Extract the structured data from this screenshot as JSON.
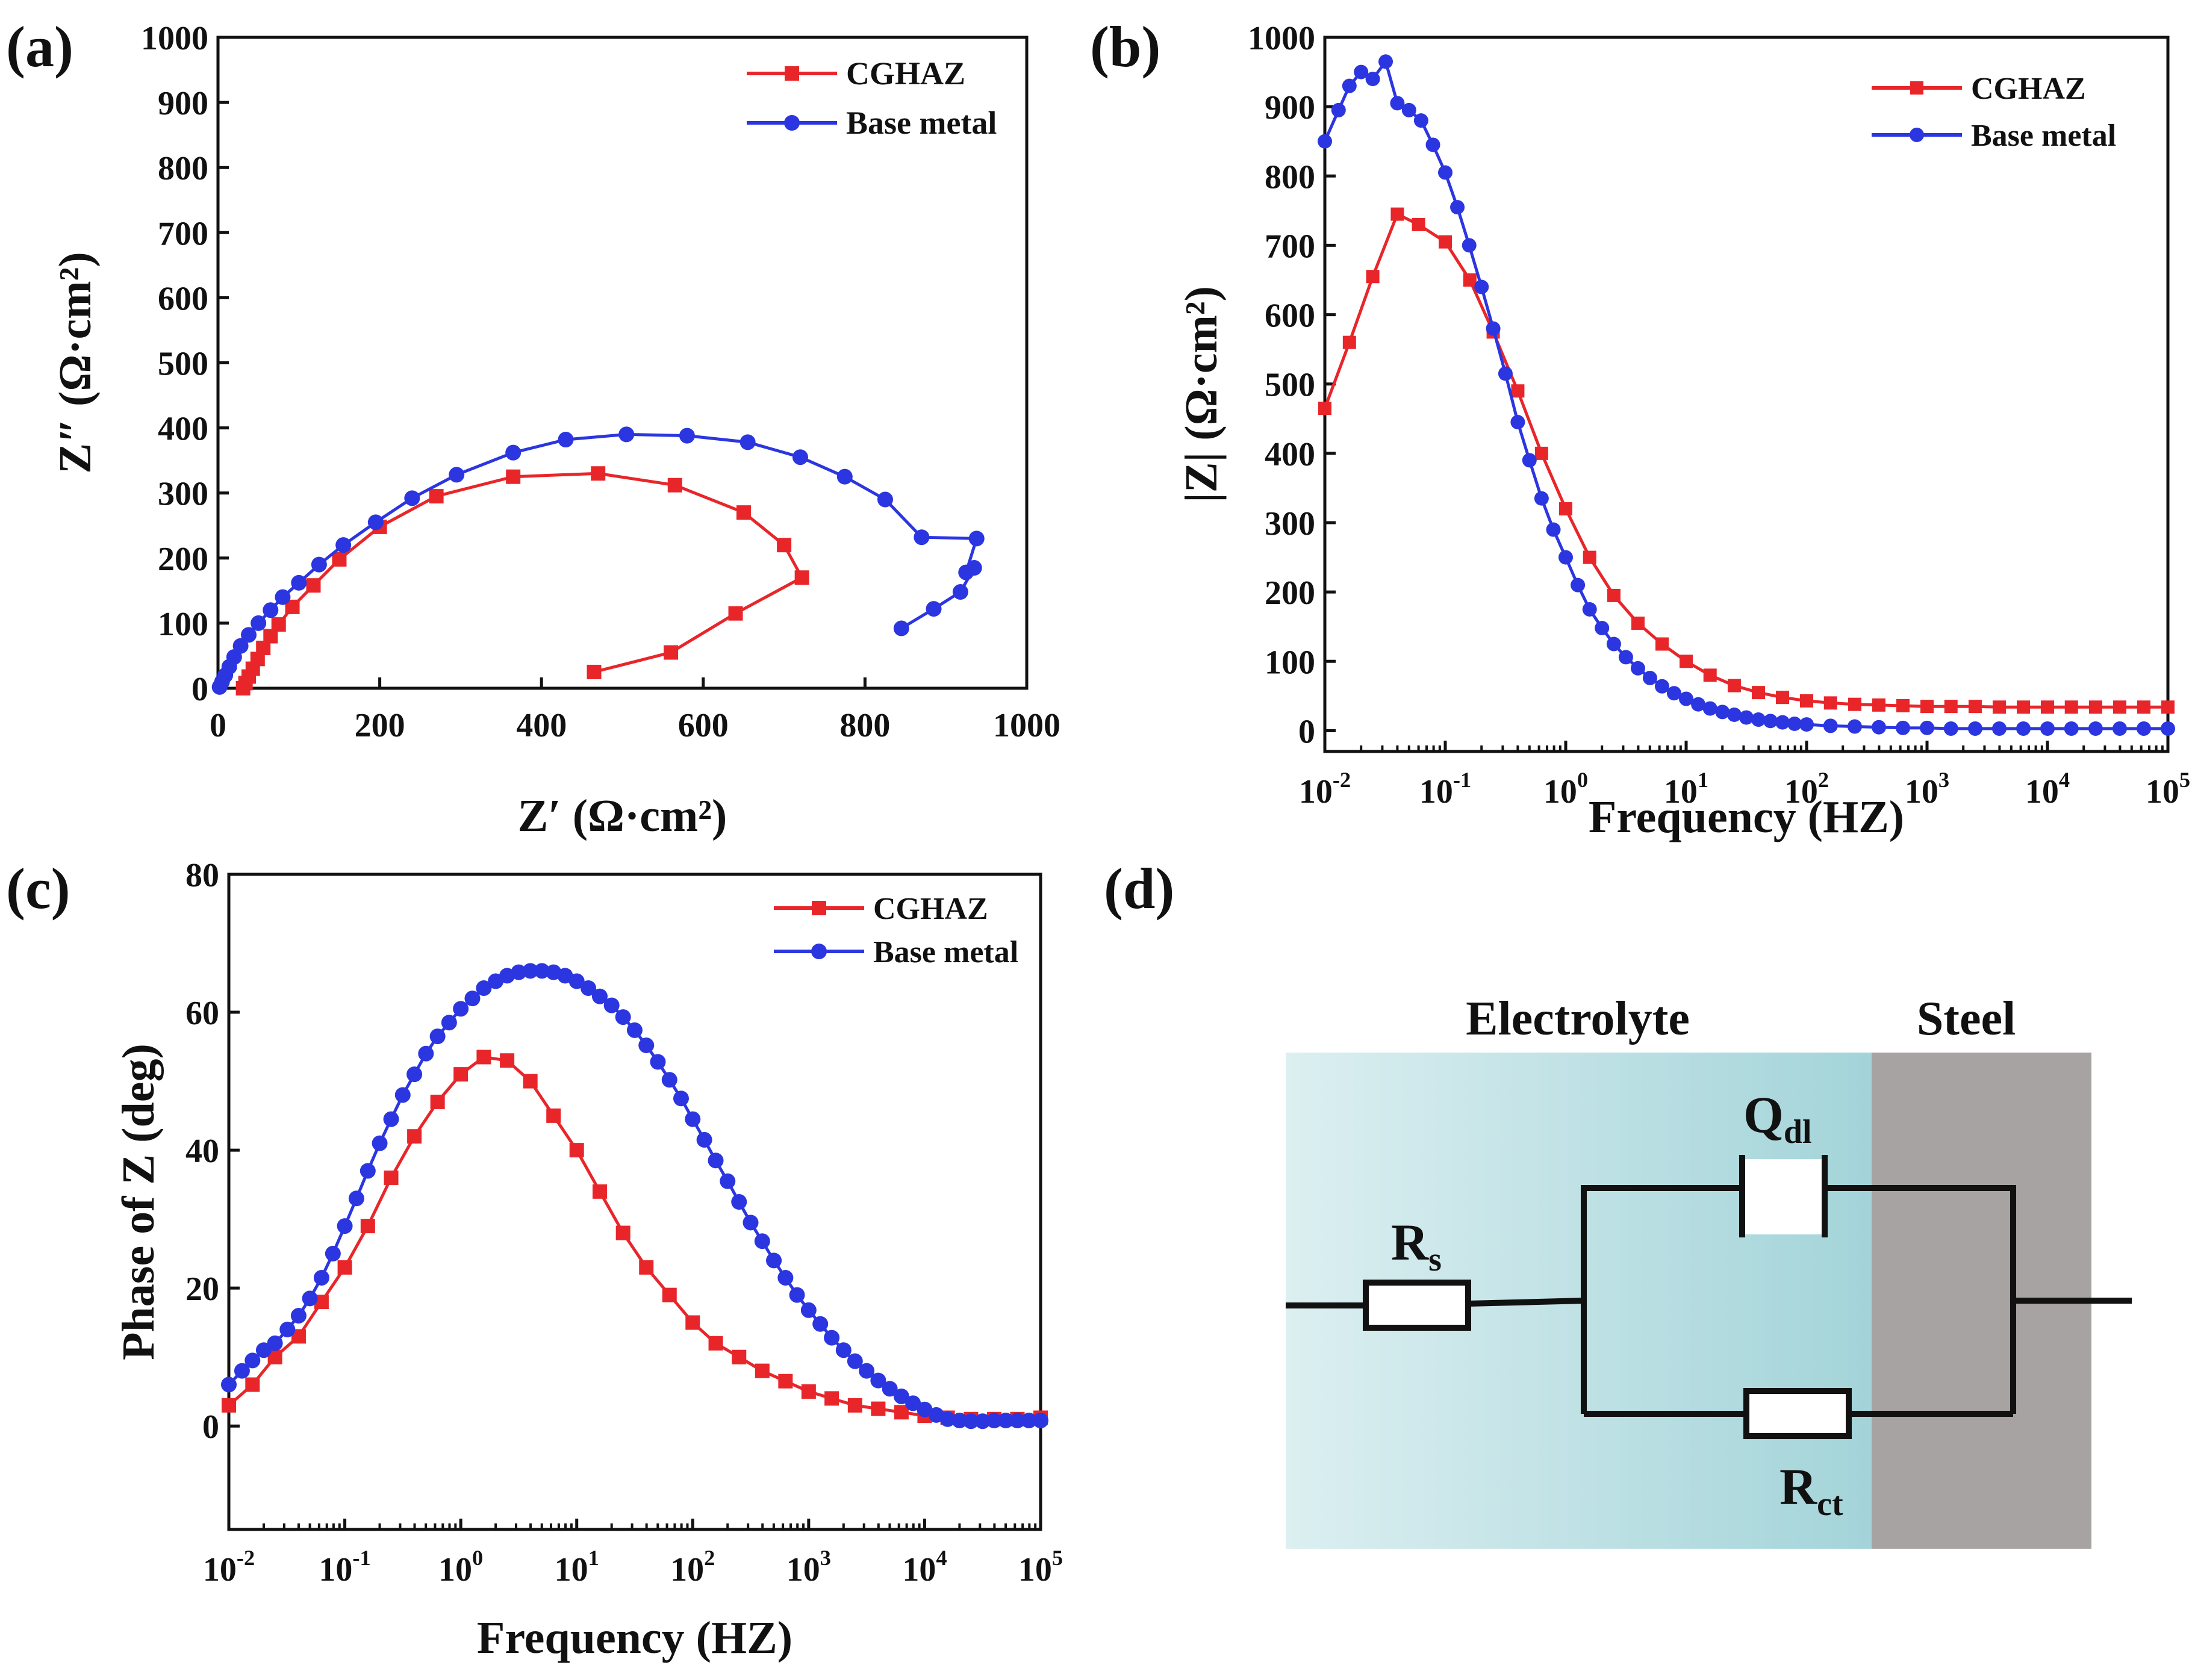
{
  "figure": {
    "panel_labels": [
      "(a)",
      "(b)",
      "(c)",
      "(d)"
    ]
  },
  "colors": {
    "cghaz": "#e8262a",
    "base": "#2b36e0",
    "axis": "#111111"
  },
  "circuit": {
    "electrolyte_label": "Electrolyte",
    "steel_label": "Steel",
    "rs": {
      "main": "R",
      "sub": "s"
    },
    "qdl": {
      "main": "Q",
      "sub": "dl"
    },
    "rct": {
      "main": "R",
      "sub": "ct"
    },
    "electrolyte_color": "#a8d8db",
    "steel_color": "#a7a3a3"
  },
  "chart_data": [
    {
      "panel": "(a)",
      "type": "line",
      "title": "",
      "xlabel": "Z′  (Ω·cm²)",
      "ylabel": "Z″ (Ω·cm²)",
      "xlim": [
        0,
        1000
      ],
      "ylim": [
        0,
        1000
      ],
      "xticks": [
        0,
        200,
        400,
        600,
        800,
        1000
      ],
      "yticks": [
        0,
        100,
        200,
        300,
        400,
        500,
        600,
        700,
        800,
        900,
        1000
      ],
      "legend": "top-right",
      "series": [
        {
          "name": "CGHAZ",
          "marker": "square",
          "x": [
            31,
            34,
            38,
            43,
            49,
            56,
            65,
            75,
            92,
            118,
            150,
            200,
            270,
            365,
            470,
            565,
            650,
            700,
            722,
            640,
            560,
            465
          ],
          "y": [
            0,
            8,
            18,
            30,
            45,
            62,
            80,
            98,
            125,
            158,
            198,
            248,
            295,
            325,
            330,
            312,
            270,
            220,
            170,
            115,
            55,
            25
          ]
        },
        {
          "name": "Base metal",
          "marker": "circle",
          "x": [
            2,
            5,
            9,
            14,
            20,
            28,
            38,
            50,
            65,
            80,
            100,
            125,
            155,
            195,
            240,
            295,
            365,
            430,
            505,
            580,
            655,
            720,
            775,
            825,
            870,
            938,
            925,
            935,
            918,
            885,
            845
          ],
          "y": [
            2,
            10,
            20,
            33,
            48,
            65,
            82,
            100,
            120,
            140,
            162,
            190,
            220,
            255,
            292,
            328,
            362,
            382,
            390,
            388,
            378,
            355,
            325,
            290,
            232,
            230,
            178,
            185,
            148,
            122,
            92
          ]
        }
      ]
    },
    {
      "panel": "(b)",
      "type": "line",
      "title": "",
      "xlabel": "Frequency (HZ)",
      "ylabel": "|Z| (Ω·cm²)",
      "xscale": "log",
      "xlim": [
        0.01,
        100000
      ],
      "ylim": [
        -30,
        1000
      ],
      "xticks": [
        0.01,
        0.1,
        1,
        10,
        100,
        1000,
        10000,
        100000
      ],
      "xtick_labels": [
        {
          "base": "10",
          "exp": "-2"
        },
        {
          "base": "10",
          "exp": "-1"
        },
        {
          "base": "10",
          "exp": "0"
        },
        {
          "base": "10",
          "exp": "1"
        },
        {
          "base": "10",
          "exp": "2"
        },
        {
          "base": "10",
          "exp": "3"
        },
        {
          "base": "10",
          "exp": "4"
        },
        {
          "base": "10",
          "exp": "5"
        }
      ],
      "yticks": [
        0,
        100,
        200,
        300,
        400,
        500,
        600,
        700,
        800,
        900,
        1000
      ],
      "legend": "top-right",
      "series": [
        {
          "name": "CGHAZ",
          "marker": "square",
          "x": [
            0.01,
            0.016,
            0.025,
            0.04,
            0.06,
            0.1,
            0.16,
            0.25,
            0.4,
            0.63,
            1,
            1.58,
            2.51,
            3.98,
            6.31,
            10,
            15.8,
            25.1,
            39.8,
            63.1,
            100,
            158,
            251,
            398,
            631,
            1000,
            1580,
            2510,
            3980,
            6310,
            10000,
            15800,
            25100,
            39800,
            63100,
            100000
          ],
          "y": [
            465,
            560,
            655,
            745,
            730,
            705,
            650,
            575,
            490,
            400,
            320,
            250,
            195,
            155,
            125,
            100,
            80,
            65,
            55,
            48,
            43,
            40,
            38,
            37,
            36,
            35,
            35,
            35,
            34,
            34,
            34,
            34,
            34,
            34,
            34,
            34
          ]
        },
        {
          "name": "Base metal",
          "marker": "circle",
          "x": [
            0.01,
            0.013,
            0.016,
            0.02,
            0.025,
            0.032,
            0.04,
            0.05,
            0.063,
            0.079,
            0.1,
            0.126,
            0.158,
            0.2,
            0.25,
            0.316,
            0.4,
            0.5,
            0.63,
            0.79,
            1,
            1.26,
            1.58,
            2,
            2.51,
            3.16,
            3.98,
            5.01,
            6.31,
            7.94,
            10,
            12.6,
            15.8,
            20,
            25.1,
            31.6,
            39.8,
            50.1,
            63.1,
            79.4,
            100,
            158,
            251,
            398,
            631,
            1000,
            1580,
            2510,
            3980,
            6310,
            10000,
            15800,
            25100,
            39800,
            63100,
            100000
          ],
          "y": [
            850,
            895,
            930,
            950,
            940,
            965,
            905,
            895,
            880,
            845,
            805,
            755,
            700,
            640,
            580,
            515,
            445,
            390,
            335,
            290,
            250,
            210,
            175,
            148,
            125,
            106,
            90,
            76,
            64,
            54,
            46,
            38,
            32,
            27,
            23,
            19,
            16,
            14,
            12,
            10,
            9,
            7,
            6,
            5,
            4,
            4,
            3,
            3,
            3,
            3,
            3,
            3,
            3,
            3,
            3,
            3
          ]
        }
      ]
    },
    {
      "panel": "(c)",
      "type": "line",
      "title": "",
      "xlabel": "Frequency (HZ)",
      "ylabel": "Phase of Z (deg)",
      "xscale": "log",
      "xlim": [
        0.01,
        100000
      ],
      "ylim": [
        -15,
        80
      ],
      "xticks": [
        0.01,
        0.1,
        1,
        10,
        100,
        1000,
        10000,
        100000
      ],
      "xtick_labels": [
        {
          "base": "10",
          "exp": "-2"
        },
        {
          "base": "10",
          "exp": "-1"
        },
        {
          "base": "10",
          "exp": "0"
        },
        {
          "base": "10",
          "exp": "1"
        },
        {
          "base": "10",
          "exp": "2"
        },
        {
          "base": "10",
          "exp": "3"
        },
        {
          "base": "10",
          "exp": "4"
        },
        {
          "base": "10",
          "exp": "5"
        }
      ],
      "yticks": [
        0,
        20,
        40,
        60,
        80
      ],
      "legend": "top-right",
      "series": [
        {
          "name": "CGHAZ",
          "marker": "square",
          "x": [
            0.01,
            0.016,
            0.025,
            0.04,
            0.063,
            0.1,
            0.158,
            0.251,
            0.398,
            0.631,
            1,
            1.58,
            2.51,
            3.98,
            6.31,
            10,
            15.8,
            25.1,
            39.8,
            63.1,
            100,
            158,
            251,
            398,
            631,
            1000,
            1580,
            2510,
            3980,
            6310,
            10000,
            15800,
            25100,
            39800,
            63100,
            100000
          ],
          "y": [
            3,
            6,
            10,
            13,
            18,
            23,
            29,
            36,
            42,
            47,
            51,
            53.5,
            53,
            50,
            45,
            40,
            34,
            28,
            23,
            19,
            15,
            12,
            10,
            8,
            6.5,
            5,
            4,
            3,
            2.5,
            2,
            1.5,
            1.2,
            1,
            1,
            1,
            1.2
          ]
        },
        {
          "name": "Base metal",
          "marker": "circle",
          "x": [
            0.01,
            0.013,
            0.016,
            0.02,
            0.025,
            0.032,
            0.04,
            0.05,
            0.063,
            0.079,
            0.1,
            0.126,
            0.158,
            0.2,
            0.251,
            0.316,
            0.398,
            0.501,
            0.631,
            0.794,
            1,
            1.26,
            1.58,
            2,
            2.51,
            3.16,
            3.98,
            5.01,
            6.31,
            7.94,
            10,
            12.6,
            15.8,
            20,
            25.1,
            31.6,
            39.8,
            50.1,
            63.1,
            79.4,
            100,
            126,
            158,
            200,
            251,
            316,
            398,
            501,
            631,
            794,
            1000,
            1260,
            1580,
            2000,
            2510,
            3160,
            3980,
            5010,
            6310,
            7940,
            10000,
            12600,
            15800,
            20000,
            25100,
            31600,
            39800,
            50100,
            63100,
            79400,
            100000
          ],
          "y": [
            6,
            8,
            9.5,
            11,
            12,
            14,
            16,
            18.5,
            21.5,
            25,
            29,
            33,
            37,
            41,
            44.5,
            48,
            51,
            54,
            56.5,
            58.5,
            60.5,
            62,
            63.5,
            64.5,
            65.3,
            65.8,
            66,
            66,
            65.8,
            65.3,
            64.5,
            63.5,
            62.3,
            61,
            59.3,
            57.4,
            55.2,
            52.8,
            50.2,
            47.5,
            44.5,
            41.5,
            38.5,
            35.5,
            32.5,
            29.5,
            26.8,
            24,
            21.5,
            19,
            16.8,
            14.8,
            12.8,
            11,
            9.4,
            8,
            6.6,
            5.4,
            4.3,
            3.3,
            2.4,
            1.6,
            1,
            0.8,
            0.7,
            0.7,
            0.8,
            0.8,
            0.8,
            0.8,
            0.8
          ]
        }
      ]
    }
  ]
}
